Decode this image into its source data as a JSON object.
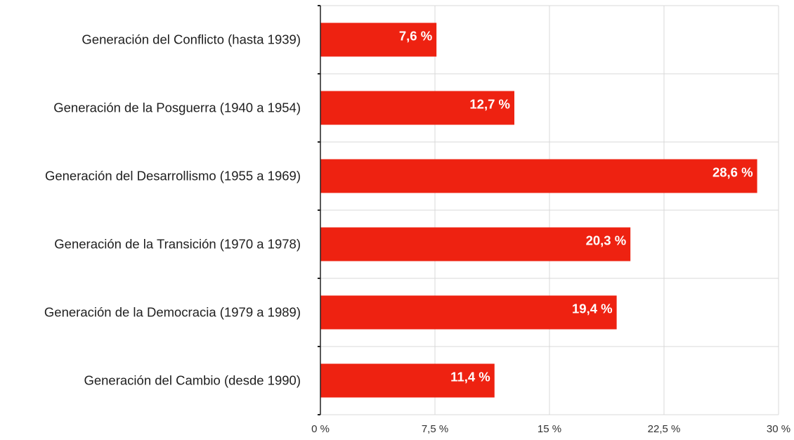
{
  "chart_data": {
    "type": "bar",
    "orientation": "horizontal",
    "title": "",
    "xlabel": "",
    "ylabel": "",
    "categories": [
      "Generación del Conflicto (hasta 1939)",
      "Generación de la Posguerra (1940 a 1954)",
      "Generación del Desarrollismo (1955 a 1969)",
      "Generación de la Transición (1970 a 1978)",
      "Generación de la Democracia (1979 a 1989)",
      "Generación del Cambio (desde 1990)"
    ],
    "values": [
      7.6,
      12.7,
      28.6,
      20.3,
      19.4,
      11.4
    ],
    "data_labels": [
      "7,6 %",
      "12,7 %",
      "28,6 %",
      "20,3 %",
      "19,4 %",
      "11,4 %"
    ],
    "xlim": [
      0,
      30
    ],
    "ticks": [
      0,
      7.5,
      15,
      22.5,
      30
    ],
    "tick_labels": [
      "0 %",
      "7,5 %",
      "15 %",
      "22,5 %",
      "30 %"
    ],
    "grid": true,
    "legend": "none",
    "bar_color": "#ee2211",
    "grid_color": "#d9d9d9"
  }
}
